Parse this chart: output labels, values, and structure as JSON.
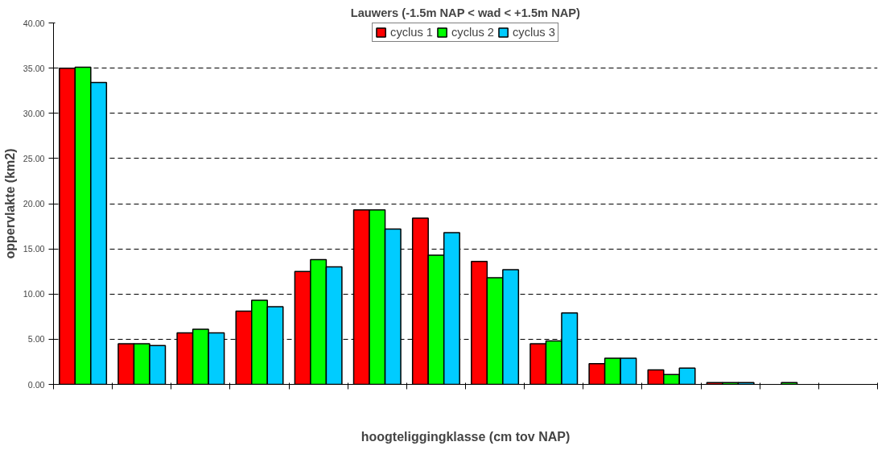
{
  "chart_data": {
    "type": "bar",
    "title": "Lauwers (-1.5m NAP < wad < +1.5m NAP)",
    "xlabel": "hoogteliggingklasse (cm tov NAP)",
    "ylabel": "oppervlakte (km2)",
    "categories": [
      null,
      null,
      null,
      null,
      null,
      null,
      null,
      null,
      null,
      null,
      null,
      null,
      null,
      null
    ],
    "series": [
      {
        "name": "cyclus 1",
        "color": "#ff0000",
        "values": [
          35.0,
          4.5,
          5.7,
          8.1,
          12.5,
          19.3,
          18.4,
          13.6,
          4.5,
          2.3,
          1.6,
          0.2,
          0,
          0
        ]
      },
      {
        "name": "cyclus 2",
        "color": "#00ff00",
        "values": [
          35.1,
          4.5,
          6.1,
          9.3,
          13.8,
          19.3,
          14.3,
          11.8,
          4.8,
          2.9,
          1.1,
          0.2,
          0.2,
          0
        ]
      },
      {
        "name": "cyclus 3",
        "color": "#00ccff",
        "values": [
          33.4,
          4.3,
          5.7,
          8.6,
          13.0,
          17.2,
          16.8,
          12.7,
          7.9,
          2.9,
          1.8,
          0.2,
          0,
          0
        ]
      }
    ],
    "ylim": [
      0,
      40
    ],
    "yticks": [
      {
        "value": 0,
        "label": "0.00"
      },
      {
        "value": 5,
        "label": "5.00"
      },
      {
        "value": 10,
        "label": "10.00"
      },
      {
        "value": 15,
        "label": "15.00"
      },
      {
        "value": 20,
        "label": "20.00"
      },
      {
        "value": 25,
        "label": "25.00"
      },
      {
        "value": 30,
        "label": "30.00"
      },
      {
        "value": 35,
        "label": "35.00"
      },
      {
        "value": 40,
        "label": "40.00"
      }
    ],
    "grid": "y",
    "legend": "top"
  }
}
